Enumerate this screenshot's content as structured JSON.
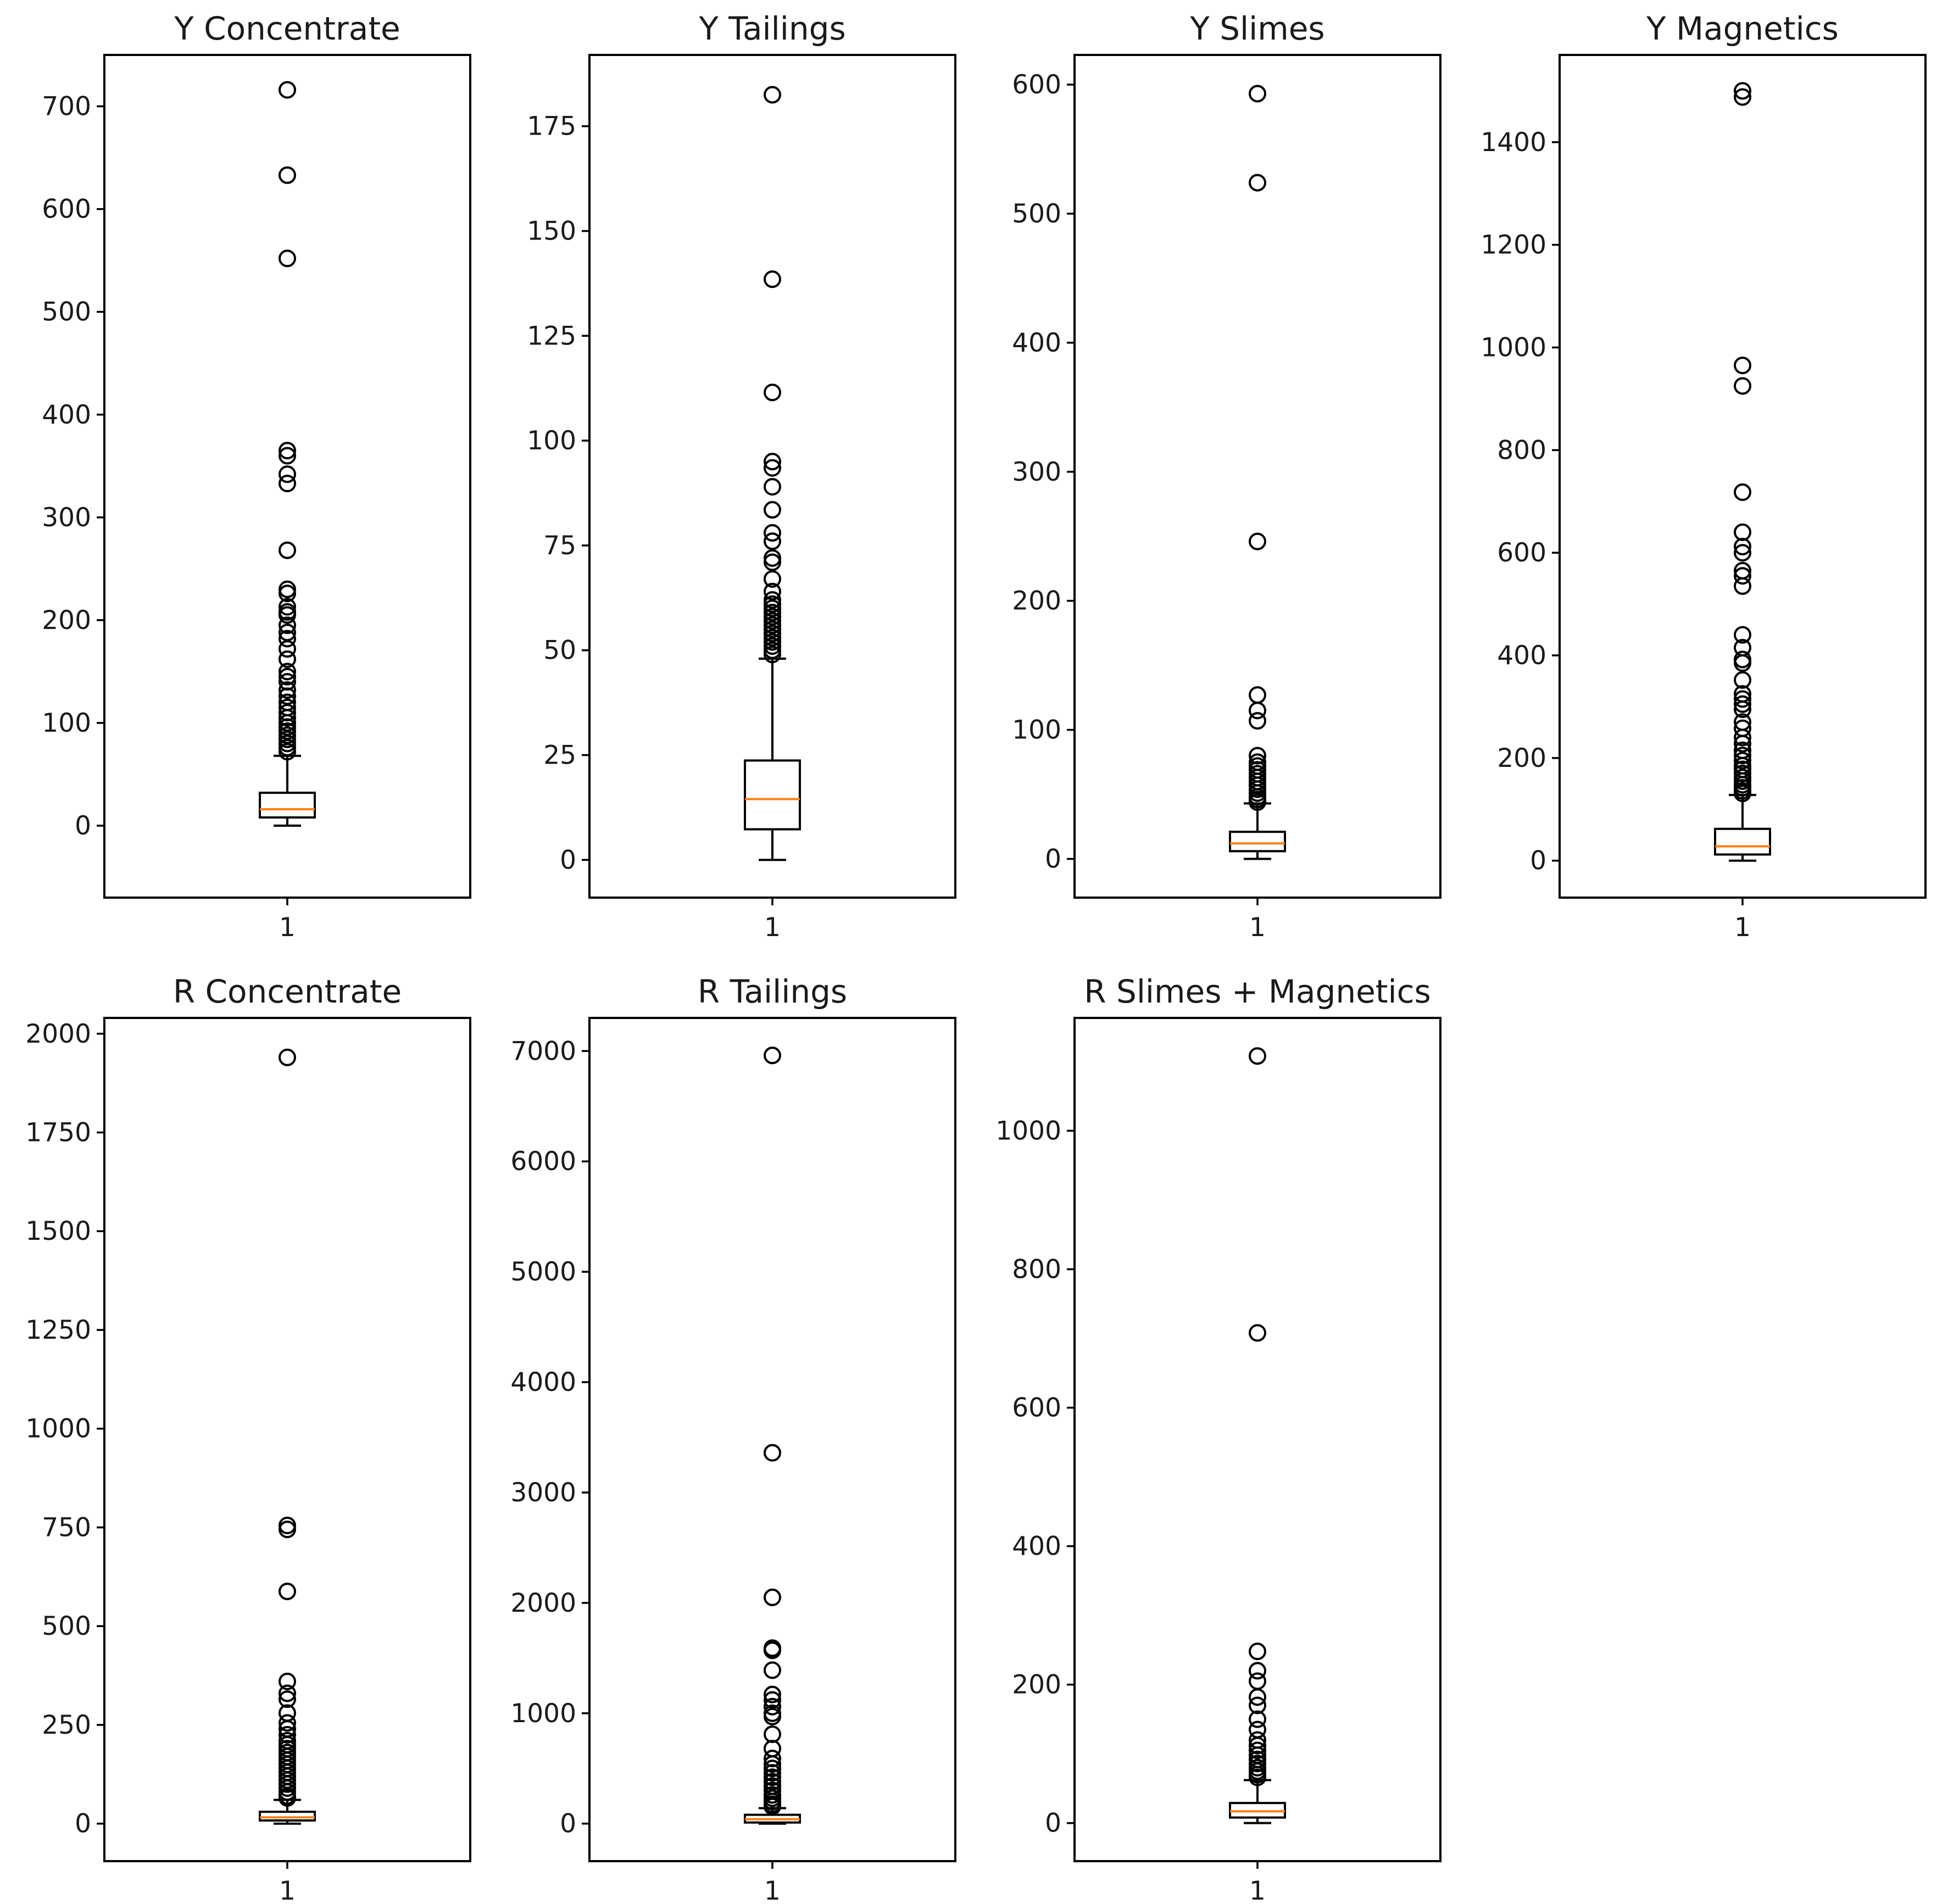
{
  "chart_data": [
    {
      "type": "box",
      "title": "Y Concentrate",
      "xticks": [
        "1"
      ],
      "ylim": [
        -70,
        750
      ],
      "yticks": [
        0,
        100,
        200,
        300,
        400,
        500,
        600,
        700
      ],
      "box": {
        "whislo": 0,
        "q1": 8,
        "med": 16,
        "q3": 32,
        "whishi": 68
      },
      "fliers": [
        716,
        633,
        552,
        365,
        360,
        342,
        333,
        268,
        230,
        226,
        213,
        208,
        205,
        195,
        188,
        182,
        172,
        162,
        150,
        145,
        140,
        132,
        126,
        120,
        115,
        110,
        105,
        100,
        96,
        92,
        88,
        84,
        80,
        76,
        72
      ]
    },
    {
      "type": "box",
      "title": "Y Tailings",
      "xticks": [
        "1"
      ],
      "ylim": [
        -9,
        192
      ],
      "yticks": [
        0,
        25,
        50,
        75,
        100,
        125,
        150,
        175
      ],
      "box": {
        "whislo": 0,
        "q1": 7.3,
        "med": 14.5,
        "q3": 23.7,
        "whishi": 48
      },
      "fliers": [
        182.5,
        138.5,
        111.5,
        95,
        93.5,
        89,
        83.5,
        78,
        76,
        72,
        71,
        67,
        64,
        62,
        61,
        60,
        59,
        58,
        57,
        56,
        55,
        54,
        53,
        52,
        51,
        50,
        49
      ]
    },
    {
      "type": "box",
      "title": "Y Slimes",
      "xticks": [
        "1"
      ],
      "ylim": [
        -30,
        623
      ],
      "yticks": [
        0,
        100,
        200,
        300,
        400,
        500,
        600
      ],
      "box": {
        "whislo": 0,
        "q1": 6,
        "med": 12,
        "q3": 21,
        "whishi": 43
      },
      "fliers": [
        593,
        524,
        246,
        127,
        115,
        107,
        80,
        75,
        72,
        69,
        66,
        63,
        60,
        57,
        54,
        51,
        48,
        46,
        44
      ]
    },
    {
      "type": "box",
      "title": "Y Magnetics",
      "xticks": [
        "1"
      ],
      "ylim": [
        -72,
        1570
      ],
      "yticks": [
        0,
        200,
        400,
        600,
        800,
        1000,
        1200,
        1400
      ],
      "box": {
        "whislo": 0,
        "q1": 12,
        "med": 28,
        "q3": 62,
        "whishi": 128
      },
      "fliers": [
        1500,
        1488,
        965,
        925,
        718,
        640,
        612,
        600,
        565,
        555,
        535,
        440,
        415,
        392,
        385,
        352,
        325,
        315,
        305,
        295,
        270,
        258,
        240,
        228,
        215,
        205,
        195,
        185,
        178,
        170,
        162,
        155,
        148,
        142,
        136,
        131
      ]
    },
    {
      "type": "box",
      "title": "R Concentrate",
      "xticks": [
        "1"
      ],
      "ylim": [
        -95,
        2040
      ],
      "yticks": [
        0,
        250,
        500,
        750,
        1000,
        1250,
        1500,
        1750,
        2000
      ],
      "box": {
        "whislo": 0,
        "q1": 8,
        "med": 16,
        "q3": 30,
        "whishi": 60
      },
      "fliers": [
        1940,
        755,
        745,
        588,
        360,
        330,
        315,
        280,
        255,
        240,
        225,
        210,
        200,
        190,
        180,
        170,
        160,
        150,
        140,
        130,
        120,
        110,
        100,
        90,
        80,
        70,
        65
      ]
    },
    {
      "type": "box",
      "title": "R Tailings",
      "xticks": [
        "1"
      ],
      "ylim": [
        -340,
        7300
      ],
      "yticks": [
        0,
        1000,
        2000,
        3000,
        4000,
        5000,
        6000,
        7000
      ],
      "box": {
        "whislo": 0,
        "q1": 10,
        "med": 40,
        "q3": 80,
        "whishi": 140
      },
      "fliers": [
        6960,
        3360,
        2050,
        1590,
        1570,
        1390,
        1170,
        1120,
        1060,
        1000,
        970,
        810,
        680,
        590,
        540,
        500,
        460,
        420,
        380,
        340,
        300,
        260,
        230,
        200,
        175,
        155
      ]
    },
    {
      "type": "box",
      "title": "R Slimes + Magnetics",
      "xticks": [
        "1"
      ],
      "ylim": [
        -55,
        1163
      ],
      "yticks": [
        0,
        200,
        400,
        600,
        800,
        1000
      ],
      "box": {
        "whislo": 0,
        "q1": 8,
        "med": 17,
        "q3": 29,
        "whishi": 62
      },
      "fliers": [
        1108,
        708,
        248,
        220,
        205,
        182,
        170,
        150,
        135,
        120,
        112,
        105,
        98,
        92,
        86,
        80,
        75,
        70,
        66
      ]
    }
  ]
}
